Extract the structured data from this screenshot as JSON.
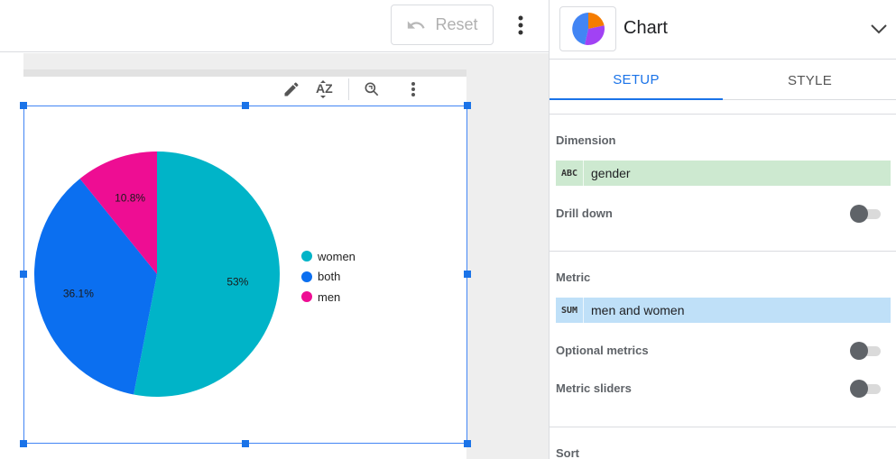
{
  "toolbar": {
    "reset_label": "Reset"
  },
  "card_toolbar": {
    "icons": [
      "pencil-icon",
      "sort-az-icon",
      "zoom-icon",
      "more-vert-icon"
    ],
    "sort_label": "AZ"
  },
  "chart_data": {
    "type": "pie",
    "categories": [
      "women",
      "both",
      "men"
    ],
    "values": [
      53,
      36.1,
      10.8
    ],
    "labels": [
      "53%",
      "36.1%",
      "10.8%"
    ],
    "colors": [
      "#00b4c8",
      "#0b6ff0",
      "#ee0d93"
    ],
    "legend_position": "right"
  },
  "panel": {
    "title": "Chart",
    "tabs": [
      {
        "label": "SETUP",
        "active": true
      },
      {
        "label": "STYLE",
        "active": false
      }
    ],
    "dimension": {
      "label": "Dimension",
      "type_badge": "ABC",
      "field": "gender",
      "color": "#cde9d0"
    },
    "drill_down": {
      "label": "Drill down",
      "on": false
    },
    "metric": {
      "label": "Metric",
      "type_badge": "SUM",
      "field": "men and women",
      "color": "#bfe0f8"
    },
    "optional_metrics": {
      "label": "Optional metrics",
      "on": false
    },
    "metric_sliders": {
      "label": "Metric sliders",
      "on": false
    },
    "sort": {
      "label": "Sort"
    }
  }
}
